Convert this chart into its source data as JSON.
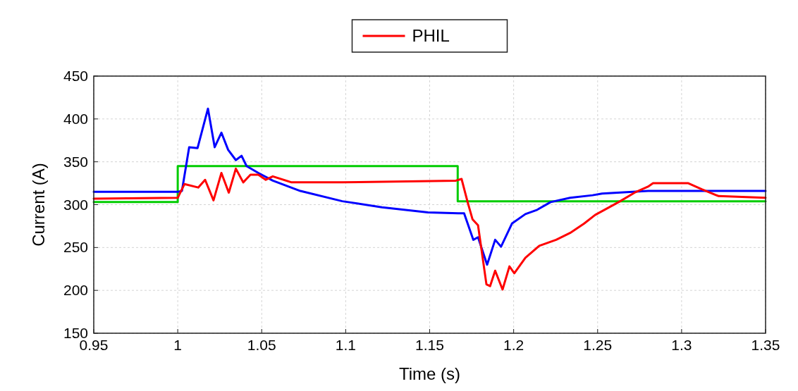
{
  "chart_data": {
    "type": "line",
    "xlabel": "Time (s)",
    "ylabel": "Current (A)",
    "xlim": [
      0.95,
      1.35
    ],
    "xticks": [
      0.95,
      1,
      1.05,
      1.1,
      1.15,
      1.2,
      1.25,
      1.3,
      1.35
    ],
    "ylim": [
      150,
      450
    ],
    "yticks": [
      150,
      200,
      250,
      300,
      350,
      400,
      450
    ],
    "grid": true,
    "legend": "top",
    "line_style": "solid",
    "marker": "none",
    "series": [
      {
        "color": "#00cc00",
        "x": [
          0.95,
          1.0,
          1.0,
          1.1667,
          1.1667,
          1.35
        ],
        "values": [
          303,
          303,
          345,
          345,
          304,
          304
        ]
      },
      {
        "color": "#0000ff",
        "x": [
          0.95,
          1.0,
          1.0025,
          1.0068,
          1.0118,
          1.018,
          1.022,
          1.026,
          1.03,
          1.0346,
          1.038,
          1.041,
          1.048,
          1.0566,
          1.073,
          1.098,
          1.1216,
          1.149,
          1.167,
          1.1705,
          1.176,
          1.1788,
          1.1842,
          1.189,
          1.1925,
          1.199,
          1.207,
          1.214,
          1.222,
          1.2336,
          1.247,
          1.2527,
          1.28,
          1.35
        ],
        "values": [
          315,
          315,
          316,
          367,
          366,
          412,
          367,
          384,
          364,
          352,
          357,
          345,
          337,
          328,
          316,
          304,
          297,
          291,
          290,
          290,
          259,
          262,
          230,
          259,
          251,
          278,
          289,
          294,
          303,
          308,
          311,
          313,
          316,
          316
        ]
      },
      {
        "name": "PHIL",
        "color": "#ff0000",
        "x": [
          0.95,
          1.0,
          1.004,
          1.0122,
          1.0163,
          1.0213,
          1.026,
          1.0304,
          1.0346,
          1.039,
          1.0433,
          1.048,
          1.0524,
          1.0566,
          1.0678,
          1.098,
          1.1656,
          1.169,
          1.1726,
          1.1755,
          1.1788,
          1.1838,
          1.186,
          1.189,
          1.1934,
          1.1975,
          1.2004,
          1.207,
          1.2153,
          1.2253,
          1.2336,
          1.242,
          1.2485,
          1.2625,
          1.272,
          1.28,
          1.283,
          1.304,
          1.312,
          1.322,
          1.35
        ],
        "values": [
          307,
          308,
          324,
          320,
          329,
          305,
          337,
          314,
          342,
          326,
          335,
          335,
          329,
          333,
          326,
          326,
          328,
          330,
          303,
          283,
          276,
          207,
          205,
          223,
          201,
          228,
          220,
          238,
          252,
          259,
          267,
          278,
          288,
          303,
          314,
          321,
          325,
          325,
          318,
          310,
          308
        ]
      }
    ]
  }
}
